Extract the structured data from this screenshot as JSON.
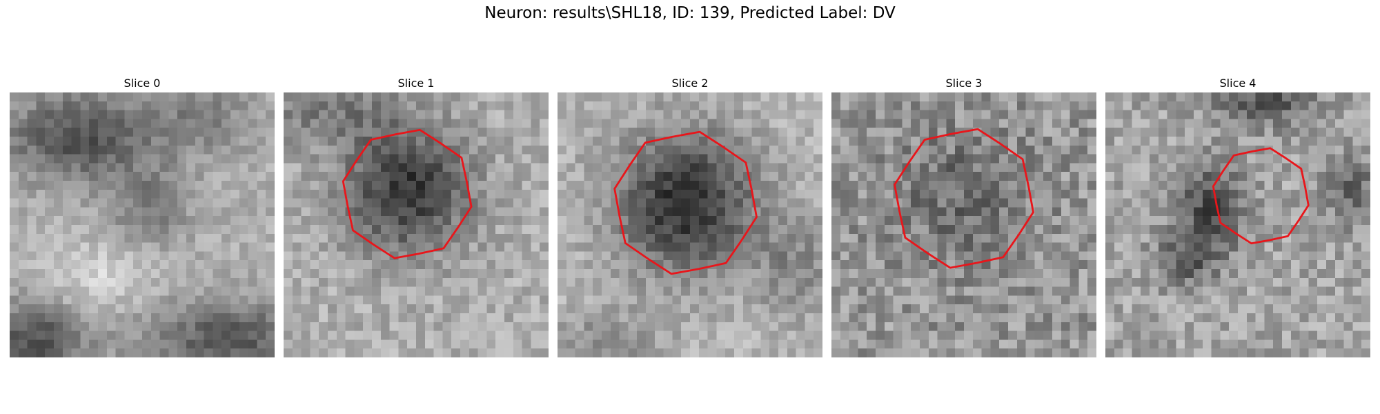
{
  "figure": {
    "title": "Neuron: results\\SHL18, ID: 139, Predicted Label: DV"
  },
  "panels": [
    {
      "title": "Slice 0",
      "has_contour": false
    },
    {
      "title": "Slice 1",
      "has_contour": true
    },
    {
      "title": "Slice 2",
      "has_contour": true
    },
    {
      "title": "Slice 3",
      "has_contour": true
    },
    {
      "title": "Slice 4",
      "has_contour": true
    }
  ],
  "colors": {
    "contour": "#e8161b",
    "background": "#ffffff"
  }
}
